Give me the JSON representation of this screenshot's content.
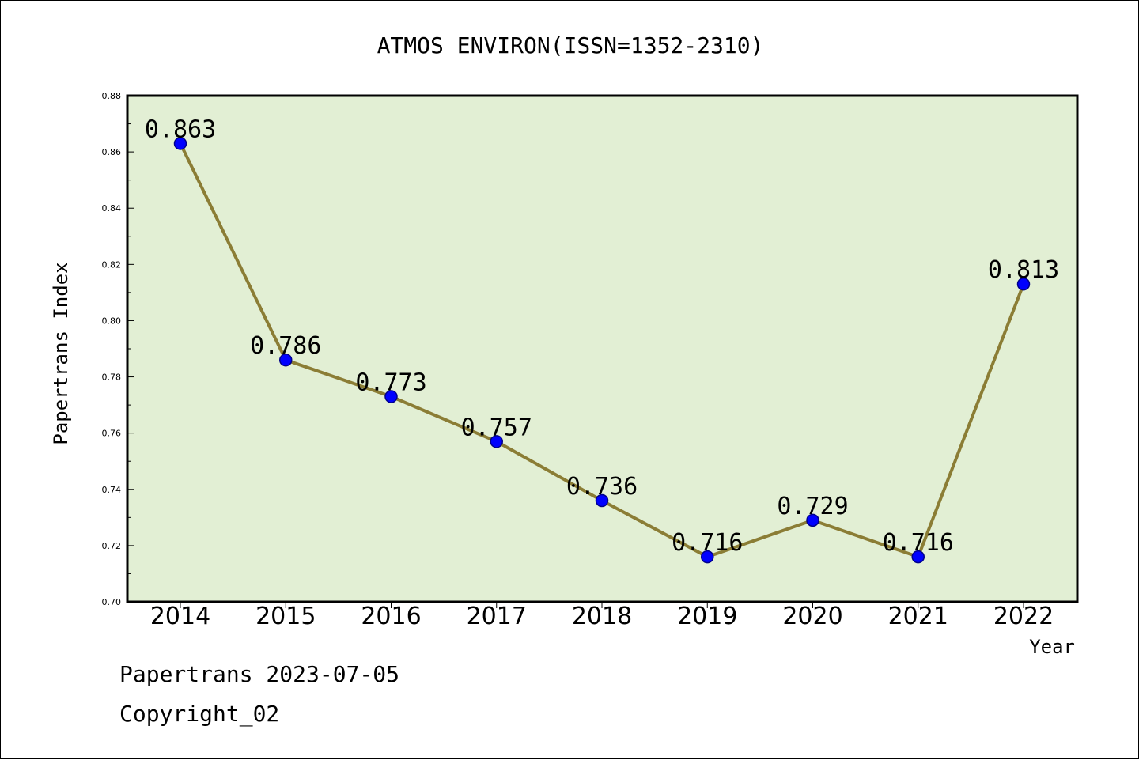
{
  "chart_data": {
    "type": "line",
    "title": "ATMOS ENVIRON(ISSN=1352-2310)",
    "xlabel": "Year",
    "ylabel": "Papertrans Index",
    "categories": [
      "2014",
      "2015",
      "2016",
      "2017",
      "2018",
      "2019",
      "2020",
      "2021",
      "2022"
    ],
    "series": [
      {
        "values": [
          0.863,
          0.786,
          0.773,
          0.757,
          0.736,
          0.716,
          0.729,
          0.716,
          0.813
        ],
        "labels": [
          "0.863",
          "0.786",
          "0.773",
          "0.757",
          "0.736",
          "0.716",
          "0.729",
          "0.716",
          "0.813"
        ]
      }
    ],
    "ylim": [
      0.7,
      0.88
    ],
    "yticks": [
      "0.70",
      "0.72",
      "0.74",
      "0.76",
      "0.78",
      "0.80",
      "0.82",
      "0.84",
      "0.86",
      "0.88"
    ],
    "grid": false,
    "legend": "none",
    "colors": {
      "plot_background": "#e2efd4",
      "line": "#8b7d35",
      "marker": "#0000ff",
      "marker_edge": "#00008b",
      "axis": "#000000"
    }
  },
  "footer": {
    "line1": "Papertrans 2023-07-05",
    "line2": "Copyright_02"
  }
}
